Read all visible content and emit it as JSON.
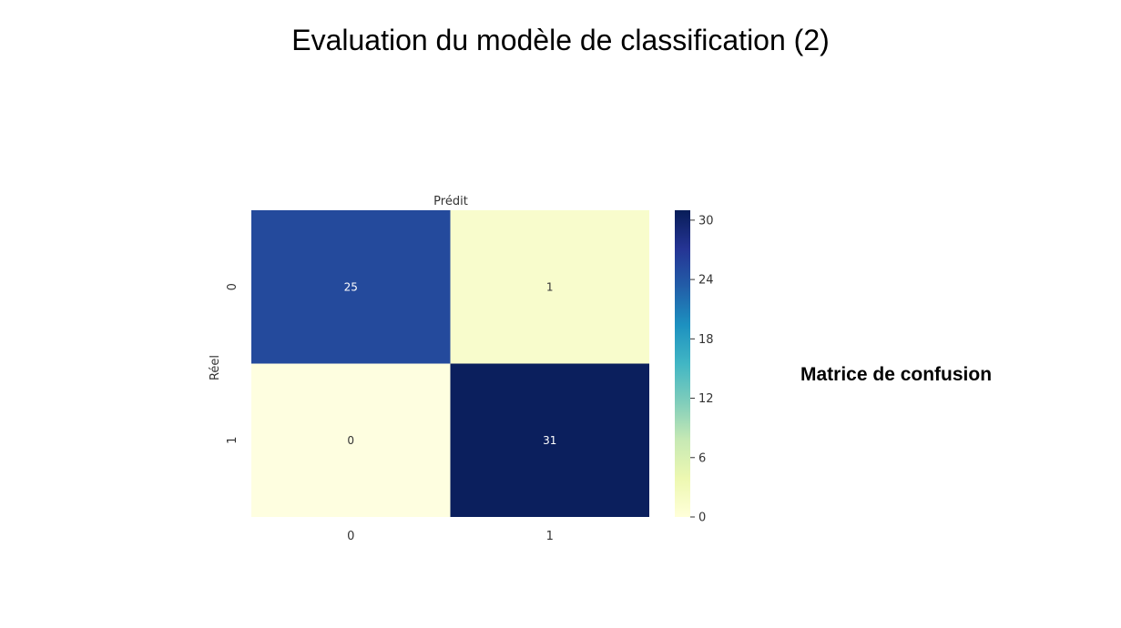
{
  "slide": {
    "title": "Evaluation du modèle de classification (2)",
    "caption": "Matrice de confusion"
  },
  "chart_data": {
    "type": "heatmap",
    "title": "",
    "xlabel": "Prédit",
    "ylabel": "Réel",
    "x_categories": [
      "0",
      "1"
    ],
    "y_categories": [
      "0",
      "1"
    ],
    "values": [
      [
        25,
        1
      ],
      [
        0,
        31
      ]
    ],
    "colormap": "YlGnBu",
    "colorbar": {
      "min": 0,
      "max": 31,
      "ticks": [
        0,
        6,
        12,
        18,
        24,
        30
      ]
    },
    "cell_colors": [
      [
        "#244a9c",
        "#f8fccc"
      ],
      [
        "#fefee0",
        "#0b1f5d"
      ]
    ],
    "annotation_colors": [
      [
        "#ffffff",
        "#333333"
      ],
      [
        "#333333",
        "#ffffff"
      ]
    ]
  }
}
